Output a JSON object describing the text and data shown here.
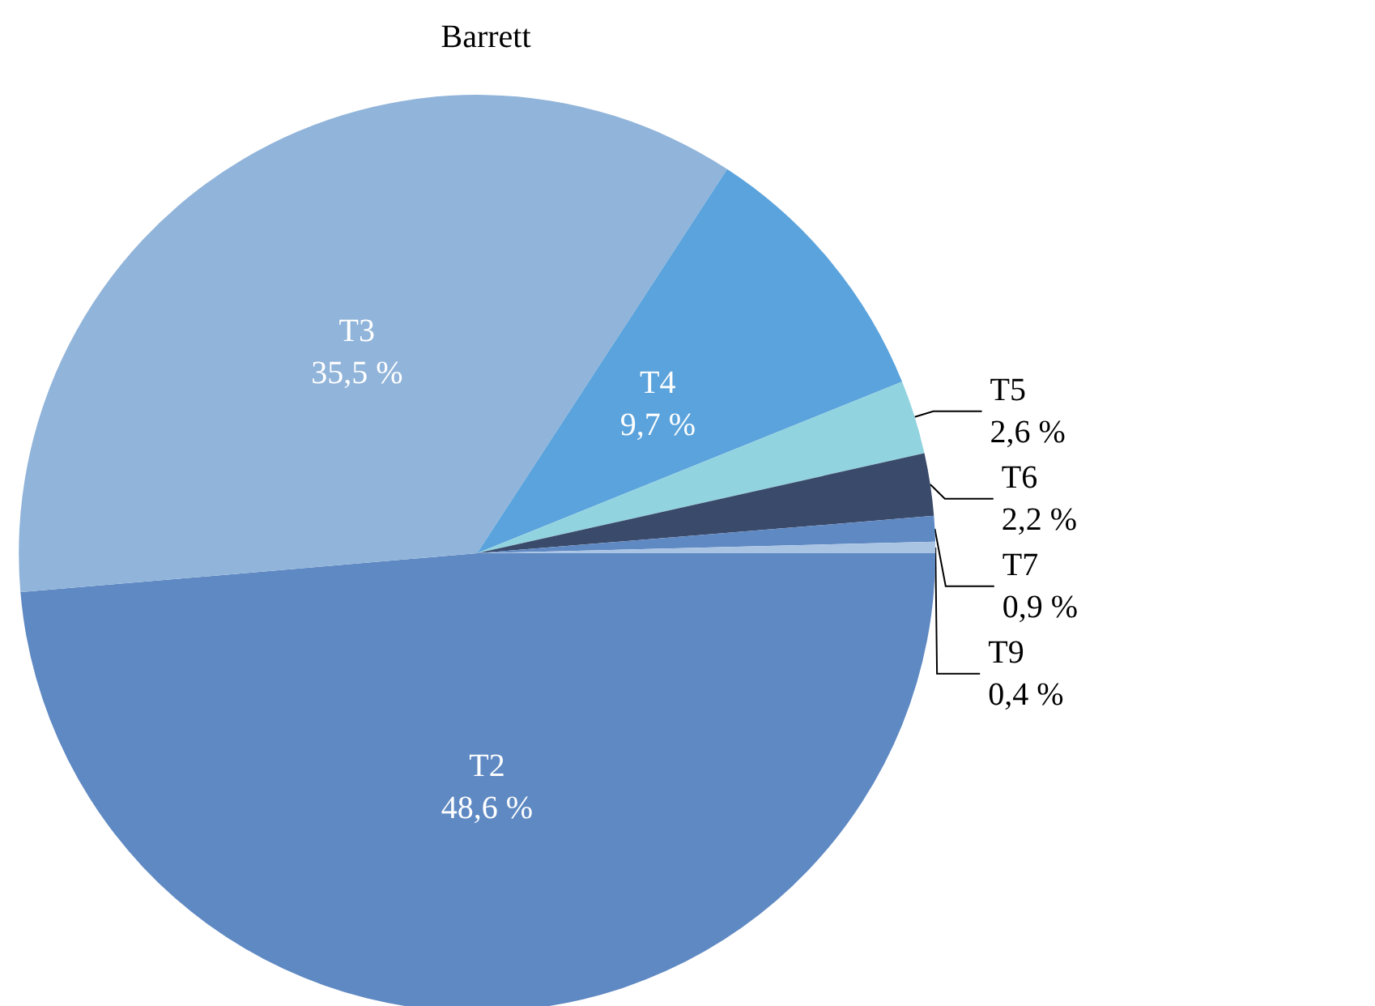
{
  "chart_data": {
    "type": "pie",
    "title": "Barrett",
    "categories": [
      "T2",
      "T3",
      "T4",
      "T5",
      "T6",
      "T7",
      "T9"
    ],
    "values": [
      48.6,
      35.5,
      9.7,
      2.6,
      2.2,
      0.9,
      0.4
    ],
    "value_labels": [
      "48,6 %",
      "35,5 %",
      "9,7 %",
      "2,6 %",
      "2,2 %",
      "0,9 %",
      "0,4 %"
    ],
    "colors": [
      "#5f89c3",
      "#91b4da",
      "#5ba3dc",
      "#92d3e0",
      "#3a4a6a",
      "#5f89c3",
      "#a9c4e3"
    ],
    "legend": false
  }
}
